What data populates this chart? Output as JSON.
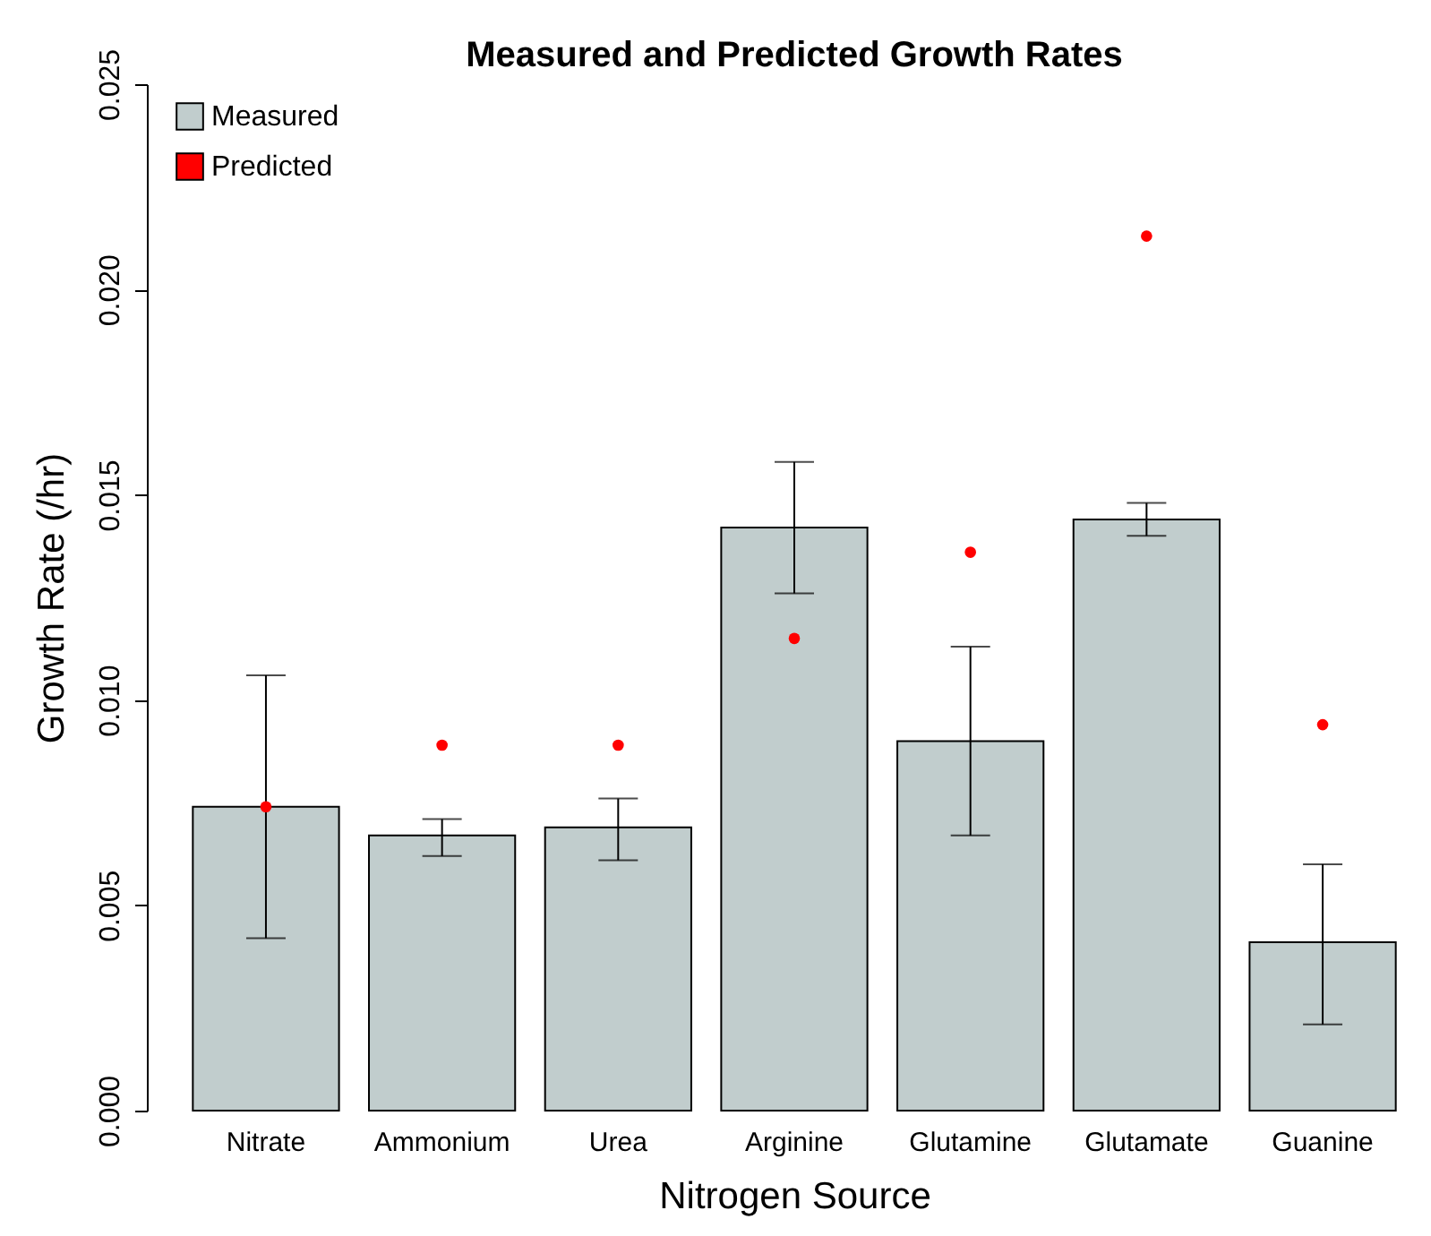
{
  "chart_data": {
    "type": "bar",
    "title": "Measured and Predicted Growth Rates",
    "xlabel": "Nitrogen Source",
    "ylabel": "Growth Rate (/hr)",
    "categories": [
      "Nitrate",
      "Ammonium",
      "Urea",
      "Arginine",
      "Glutamine",
      "Glutamate",
      "Guanine"
    ],
    "series": [
      {
        "name": "Measured",
        "color": "#c1cdcd",
        "values": [
          0.0074,
          0.0067,
          0.0069,
          0.0142,
          0.009,
          0.0144,
          0.0041
        ],
        "errors": [
          [
            0.0042,
            0.0106
          ],
          [
            0.0062,
            0.0071
          ],
          [
            0.0061,
            0.0076
          ],
          [
            0.0126,
            0.0158
          ],
          [
            0.0067,
            0.0113
          ],
          [
            0.014,
            0.0148
          ],
          [
            0.0021,
            0.006
          ]
        ]
      },
      {
        "name": "Predicted",
        "type": "scatter",
        "color": "#ff0000",
        "x": [
          "Nitrate",
          "Ammonium",
          "Urea",
          "Arginine",
          "Glutamine",
          "Glutamate",
          "Guanine"
        ],
        "values": [
          0.0074,
          0.0089,
          0.0089,
          0.0115,
          0.0136,
          0.0213,
          0.0094
        ]
      }
    ],
    "ylim": [
      0,
      0.025
    ],
    "yticks": [
      {
        "value": 0,
        "label": "0.000"
      },
      0.005,
      {
        "value": 0.01,
        "label": "0.010"
      },
      0.015,
      {
        "value": 0.02,
        "label": "0.020"
      },
      0.025
    ],
    "legend": "top left",
    "marker": "circle",
    "grid": false
  }
}
